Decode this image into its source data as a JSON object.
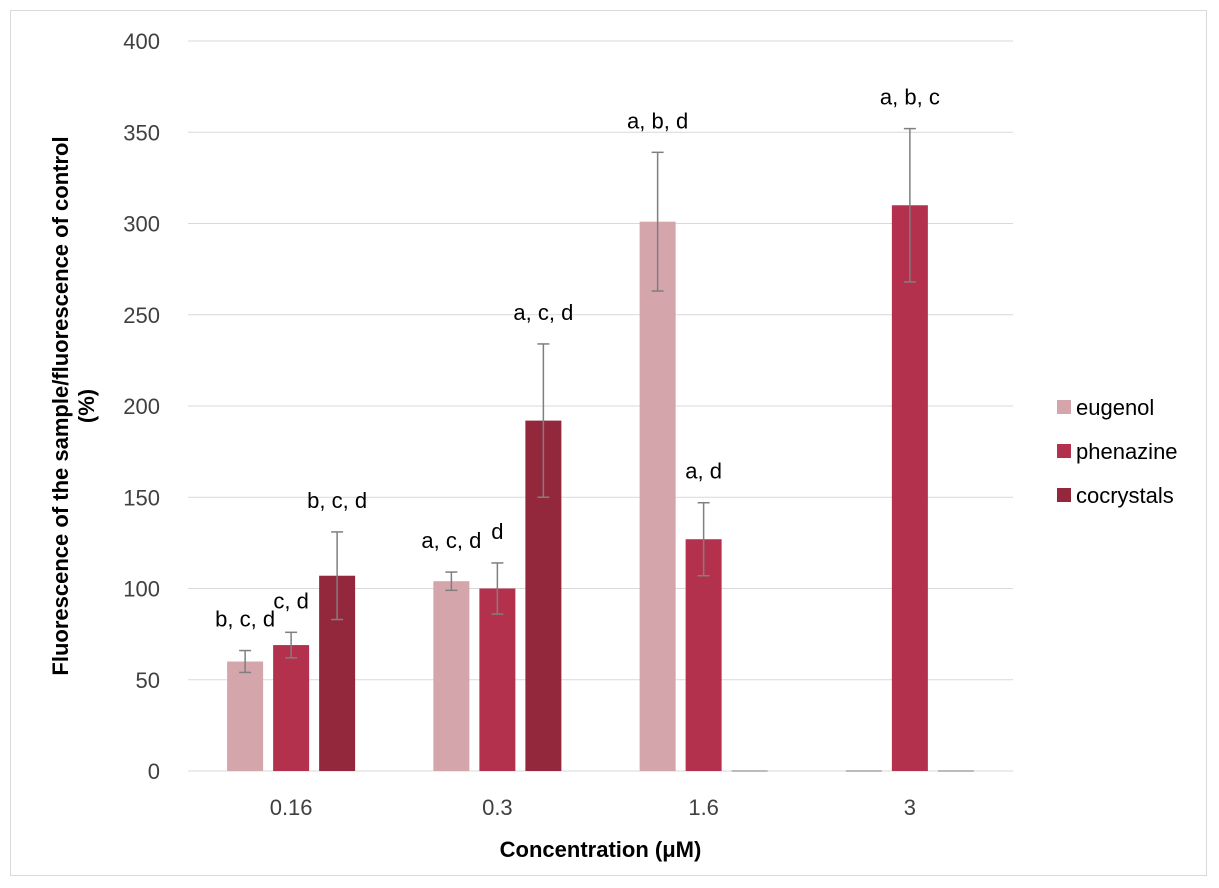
{
  "chart_data": {
    "type": "bar",
    "xlabel": "Concentration (μM)",
    "ylabel": "Fluorescence of the sample/fluorescence of control (%)",
    "ylim": [
      0,
      400
    ],
    "y_ticks": [
      0,
      50,
      100,
      150,
      200,
      250,
      300,
      350,
      400
    ],
    "grid": true,
    "legend_position": "right",
    "categories": [
      "0.16",
      "0.3",
      "1.6",
      "3"
    ],
    "series": [
      {
        "name": "eugenol",
        "color": "#d4a5ab",
        "values": [
          60,
          104,
          301,
          0
        ],
        "errors": [
          6,
          5,
          38,
          0
        ],
        "annotations": [
          "b, c, d",
          "a, c, d",
          "a, b, d",
          ""
        ]
      },
      {
        "name": "phenazine",
        "color": "#b3314d",
        "values": [
          69,
          100,
          127,
          310
        ],
        "errors": [
          7,
          14,
          20,
          42
        ],
        "annotations": [
          "c, d",
          "d",
          "a, d",
          "a, b, c"
        ]
      },
      {
        "name": "cocrystals",
        "color": "#93283d",
        "values": [
          107,
          192,
          0,
          0
        ],
        "errors": [
          24,
          42,
          0,
          0
        ],
        "annotations": [
          "b, c, d",
          "a, c, d",
          "",
          ""
        ]
      }
    ]
  }
}
